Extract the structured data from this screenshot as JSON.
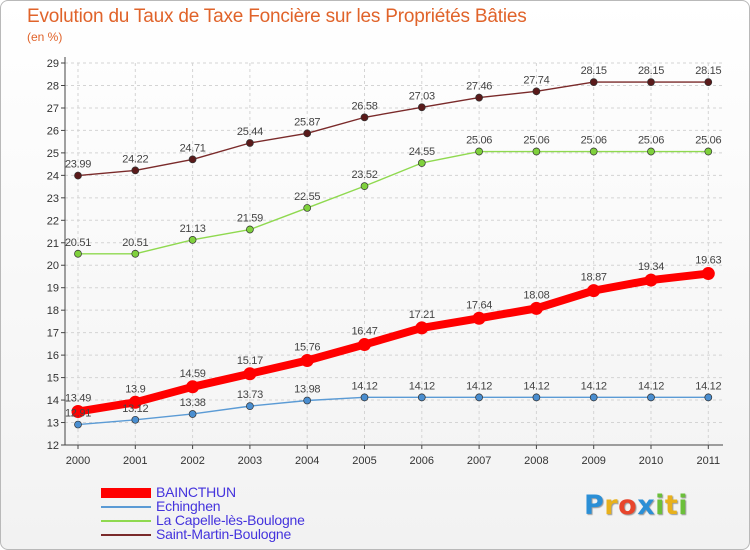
{
  "chart_data": {
    "type": "line",
    "title": "Evolution du Taux de Taxe Foncière sur les Propriétés Bâties",
    "ylabel": "(en %)",
    "xlabel": "",
    "x": [
      "2000",
      "2001",
      "2002",
      "2003",
      "2004",
      "2005",
      "2006",
      "2007",
      "2008",
      "2009",
      "2010",
      "2011"
    ],
    "yticks": [
      "12",
      "13",
      "14",
      "15",
      "16",
      "17",
      "18",
      "19",
      "20",
      "21",
      "22",
      "23",
      "24",
      "25",
      "26",
      "27",
      "28",
      "29"
    ],
    "ylim": [
      12,
      29
    ],
    "grid": true,
    "series": [
      {
        "name": "BAINCTHUN",
        "color": "#ff0000",
        "values": [
          13.49,
          13.9,
          14.59,
          15.17,
          15.76,
          16.47,
          17.21,
          17.64,
          18.08,
          18.87,
          19.34,
          19.63
        ],
        "labels": [
          "13.49",
          "13.9",
          "14.59",
          "15.17",
          "15.76",
          "16.47",
          "17.21",
          "17.64",
          "18.08",
          "18.87",
          "19.34",
          "19.63"
        ]
      },
      {
        "name": "Echinghen",
        "color": "#5b9bd5",
        "values": [
          12.91,
          13.12,
          13.38,
          13.73,
          13.98,
          14.12,
          14.12,
          14.12,
          14.12,
          14.12,
          14.12,
          14.12
        ],
        "labels": [
          "12.91",
          "13.12",
          "13.38",
          "13.73",
          "13.98",
          "14.12",
          "14.12",
          "14.12",
          "14.12",
          "14.12",
          "14.12",
          "14.12"
        ]
      },
      {
        "name": "La Capelle-lès-Boulogne",
        "color": "#8fd94f",
        "values": [
          20.51,
          20.51,
          21.13,
          21.59,
          22.55,
          23.52,
          24.55,
          25.06,
          25.06,
          25.06,
          25.06,
          25.06
        ],
        "labels": [
          "20.51",
          "20.51",
          "21.13",
          "21.59",
          "22.55",
          "23.52",
          "24.55",
          "25.06",
          "25.06",
          "25.06",
          "25.06",
          "25.06"
        ]
      },
      {
        "name": "Saint-Martin-Boulogne",
        "color": "#7a2a2a",
        "values": [
          23.99,
          24.22,
          24.71,
          25.44,
          25.87,
          26.58,
          27.03,
          27.46,
          27.74,
          28.15,
          28.15,
          28.15
        ],
        "labels": [
          "23.99",
          "24.22",
          "24.71",
          "25.44",
          "25.87",
          "26.58",
          "27.03",
          "27.46",
          "27.74",
          "28.15",
          "28.15",
          "28.15"
        ]
      }
    ],
    "legend_position": "bottom-left"
  },
  "branding": {
    "logo_letters": [
      "P",
      "r",
      "o",
      "x",
      "i",
      "t",
      "i"
    ],
    "logo_colors": [
      "#2b8fd6",
      "#e8b11c",
      "#e8452c",
      "#2b8fd6",
      "#6bbf3a",
      "#e8b11c",
      "#6bbf3a"
    ]
  }
}
